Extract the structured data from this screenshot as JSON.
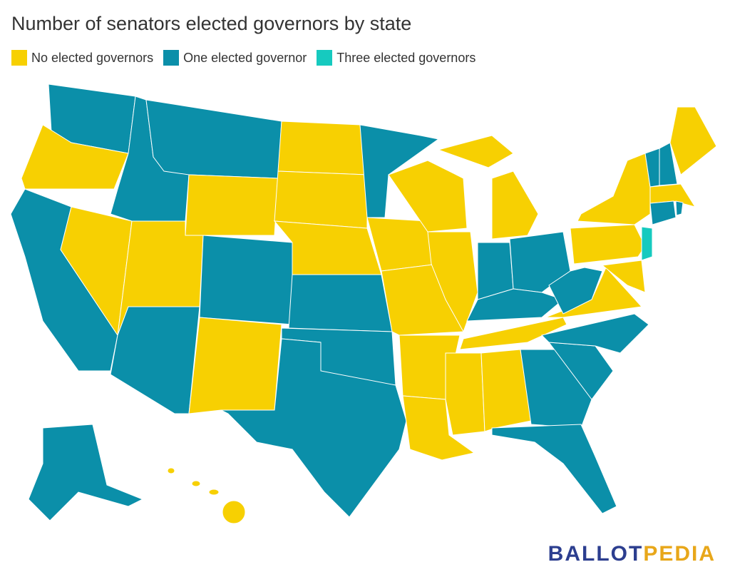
{
  "title": "Number of senators elected governors by state",
  "legend": [
    {
      "label": "No elected governors",
      "color": "#f7d002"
    },
    {
      "label": "One elected governor",
      "color": "#0b8fa9"
    },
    {
      "label": "Three elected governors",
      "color": "#16cabf"
    }
  ],
  "logo": {
    "first": "BALLOT",
    "second": "PEDIA",
    "first_color": "#2c3e8f",
    "second_color": "#e8a71a"
  }
}
